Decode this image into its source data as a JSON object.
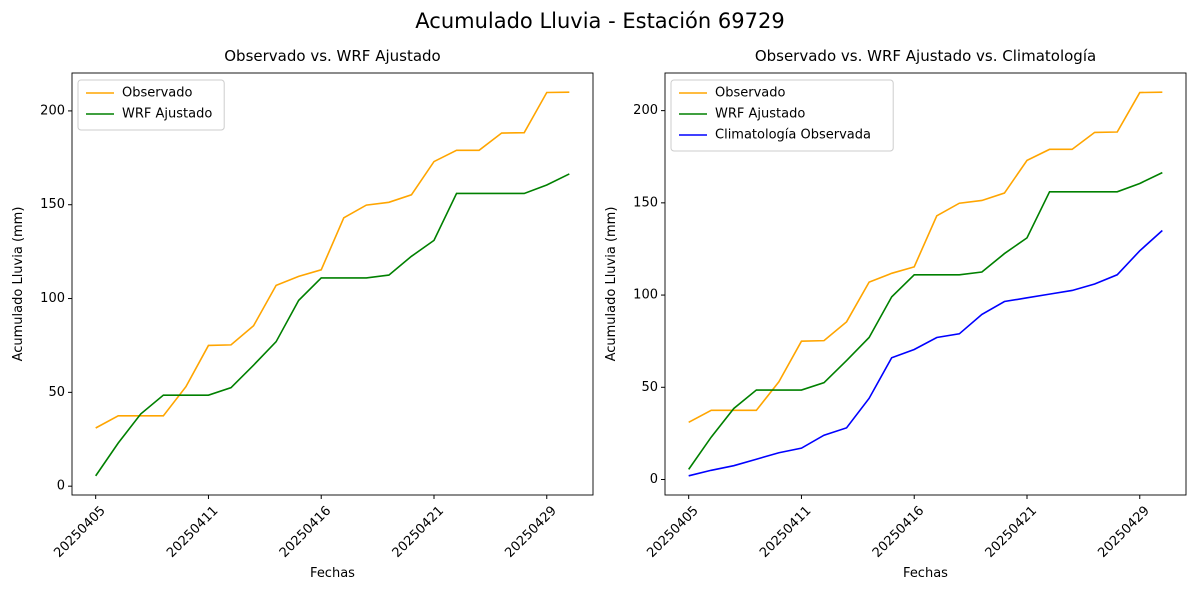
{
  "title": "Acumulado Lluvia - Estación 69729",
  "chart_data": [
    {
      "type": "line",
      "title": "Observado vs. WRF Ajustado",
      "xlabel": "Fechas",
      "ylabel": "Acumulado Lluvia (mm)",
      "categories": [
        "20250405",
        null,
        null,
        null,
        null,
        "20250411",
        null,
        null,
        null,
        null,
        "20250416",
        null,
        null,
        null,
        null,
        "20250421",
        null,
        null,
        null,
        null,
        "20250429",
        null
      ],
      "series": [
        {
          "name": "Observado",
          "color": "orange",
          "values": [
            31,
            37.5,
            37.5,
            37.5,
            53,
            75,
            75.3,
            85.5,
            107,
            111.8,
            115.3,
            143,
            149.8,
            151.3,
            155.3,
            173,
            179,
            179,
            188.2,
            188.4,
            209.8,
            210
          ]
        },
        {
          "name": "WRF Ajustado",
          "color": "green",
          "values": [
            5.5,
            23,
            38.5,
            48.5,
            48.5,
            48.5,
            52.5,
            64.5,
            77,
            99,
            111,
            111,
            111,
            112.5,
            122.5,
            131,
            156,
            156,
            156,
            156,
            160.5,
            166.4
          ]
        }
      ],
      "ylim": [
        -4.7,
        220.2
      ],
      "yticks": [
        0,
        50,
        100,
        150,
        200
      ],
      "legend": "upper left"
    },
    {
      "type": "line",
      "title": "Observado vs. WRF Ajustado vs. Climatología",
      "xlabel": "Fechas",
      "ylabel": "Acumulado Lluvia (mm)",
      "categories": [
        "20250405",
        null,
        null,
        null,
        null,
        "20250411",
        null,
        null,
        null,
        null,
        "20250416",
        null,
        null,
        null,
        null,
        "20250421",
        null,
        null,
        null,
        null,
        "20250429",
        null
      ],
      "series": [
        {
          "name": "Observado",
          "color": "orange",
          "values": [
            31,
            37.5,
            37.5,
            37.5,
            53,
            75,
            75.3,
            85.5,
            107,
            111.8,
            115.3,
            143,
            149.8,
            151.3,
            155.3,
            173,
            179,
            179,
            188.2,
            188.4,
            209.8,
            210
          ]
        },
        {
          "name": "WRF Ajustado",
          "color": "green",
          "values": [
            5.5,
            23,
            38.5,
            48.5,
            48.5,
            48.5,
            52.5,
            64.5,
            77,
            99,
            111,
            111,
            111,
            112.5,
            122.5,
            131,
            156,
            156,
            156,
            156,
            160.5,
            166.4
          ]
        },
        {
          "name": "Climatología Observada",
          "color": "blue",
          "values": [
            2,
            5,
            7.5,
            11,
            14.5,
            17,
            24,
            28,
            44,
            66,
            70.5,
            77,
            79,
            89.5,
            96.5,
            98.5,
            100.5,
            102.5,
            106,
            111,
            124,
            135
          ]
        }
      ],
      "ylim": [
        -8.4,
        220.4
      ],
      "yticks": [
        0,
        50,
        100,
        150,
        200
      ],
      "legend": "upper left"
    }
  ]
}
